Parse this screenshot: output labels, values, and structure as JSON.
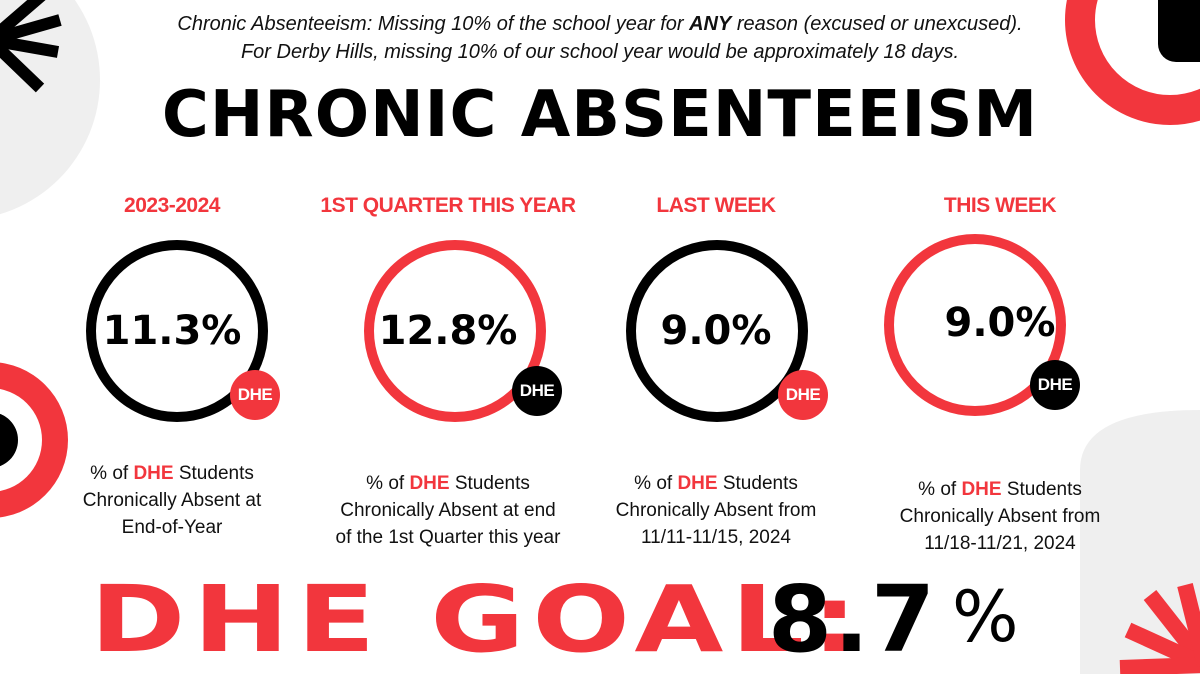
{
  "intro": {
    "line1_pre": "Chronic Absenteeism: Missing 10% of the school year for ",
    "line1_bold": "ANY",
    "line1_post": " reason (excused or unexcused).",
    "line2": "For Derby Hills, missing 10% of our school year would be approximately 18 days."
  },
  "title": "CHRONIC ABSENTEEISM",
  "colors": {
    "accent": "#f2363d",
    "dark": "#000000",
    "decor_gray": "#efefef"
  },
  "cards": [
    {
      "heading": "2023-2024",
      "value": "11.3%",
      "badge": "DHE",
      "desc_pre": "% of ",
      "desc_hl": "DHE",
      "desc_line1_post": " Students",
      "desc_line2": "Chronically Absent at",
      "desc_line3": "End-of-Year"
    },
    {
      "heading": "1ST QUARTER THIS YEAR",
      "value": "12.8%",
      "badge": "DHE",
      "desc_pre": "% of ",
      "desc_hl": "DHE",
      "desc_line1_post": " Students",
      "desc_line2": "Chronically Absent at  end",
      "desc_line3": "of the 1st Quarter this year"
    },
    {
      "heading": "LAST WEEK",
      "value": "9.0%",
      "badge": "DHE",
      "desc_pre": "% of ",
      "desc_hl": "DHE",
      "desc_line1_post": " Students",
      "desc_line2": "Chronically Absent from",
      "desc_line3": "11/11-11/15, 2024"
    },
    {
      "heading": "THIS WEEK",
      "value": "9.0%",
      "badge": "DHE",
      "desc_pre": "% of ",
      "desc_hl": "DHE",
      "desc_line1_post": " Students",
      "desc_line2": "Chronically Absent from",
      "desc_line3": "11/18-11/21, 2024"
    }
  ],
  "goal": {
    "label": "DHE GOAL:",
    "value": "8.7",
    "unit": "%"
  }
}
